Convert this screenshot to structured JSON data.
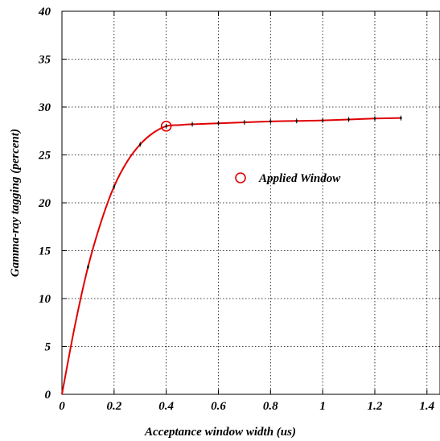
{
  "chart_data": {
    "type": "line",
    "xlabel": "Acceptance window width (us)",
    "ylabel": "Gamma-ray tagging (percent)",
    "xlim": [
      0,
      1.45
    ],
    "ylim": [
      0,
      40
    ],
    "x_ticks": [
      0,
      0.2,
      0.4,
      0.6,
      0.8,
      1,
      1.2,
      1.4
    ],
    "x_tick_labels": [
      "0",
      "0.2",
      "0.4",
      "0.6",
      "0.8",
      "1",
      "1.2",
      "1.4"
    ],
    "y_ticks": [
      0,
      5,
      10,
      15,
      20,
      25,
      30,
      35,
      40
    ],
    "y_tick_labels": [
      "0",
      "5",
      "10",
      "15",
      "20",
      "25",
      "30",
      "35",
      "40"
    ],
    "grid": true,
    "series": [
      {
        "color": "#000000",
        "x": [
          0.1,
          0.2,
          0.3,
          0.4,
          0.5,
          0.6,
          0.7,
          0.8,
          0.9,
          1.0,
          1.1,
          1.2,
          1.3
        ],
        "y": [
          13.3,
          21.7,
          26.1,
          28.0,
          28.2,
          28.3,
          28.4,
          28.5,
          28.55,
          28.6,
          28.7,
          28.8,
          28.85
        ]
      }
    ],
    "fit_curve": {
      "color": "#e00000",
      "x": [
        0,
        0.05,
        0.1,
        0.15,
        0.2,
        0.25,
        0.3,
        0.35,
        0.4,
        0.45,
        0.5,
        0.6,
        0.7,
        0.8,
        0.9,
        1.0,
        1.1,
        1.2,
        1.3
      ],
      "y": [
        0,
        7.2,
        13.3,
        18.0,
        21.7,
        24.3,
        26.1,
        27.3,
        28.0,
        28.12,
        28.2,
        28.3,
        28.4,
        28.5,
        28.55,
        28.6,
        28.7,
        28.8,
        28.85
      ]
    },
    "highlight": {
      "x": 0.4,
      "y": 28.0,
      "color": "#e00000"
    },
    "legend": {
      "label": "Applied Window",
      "position": "center-right"
    }
  }
}
